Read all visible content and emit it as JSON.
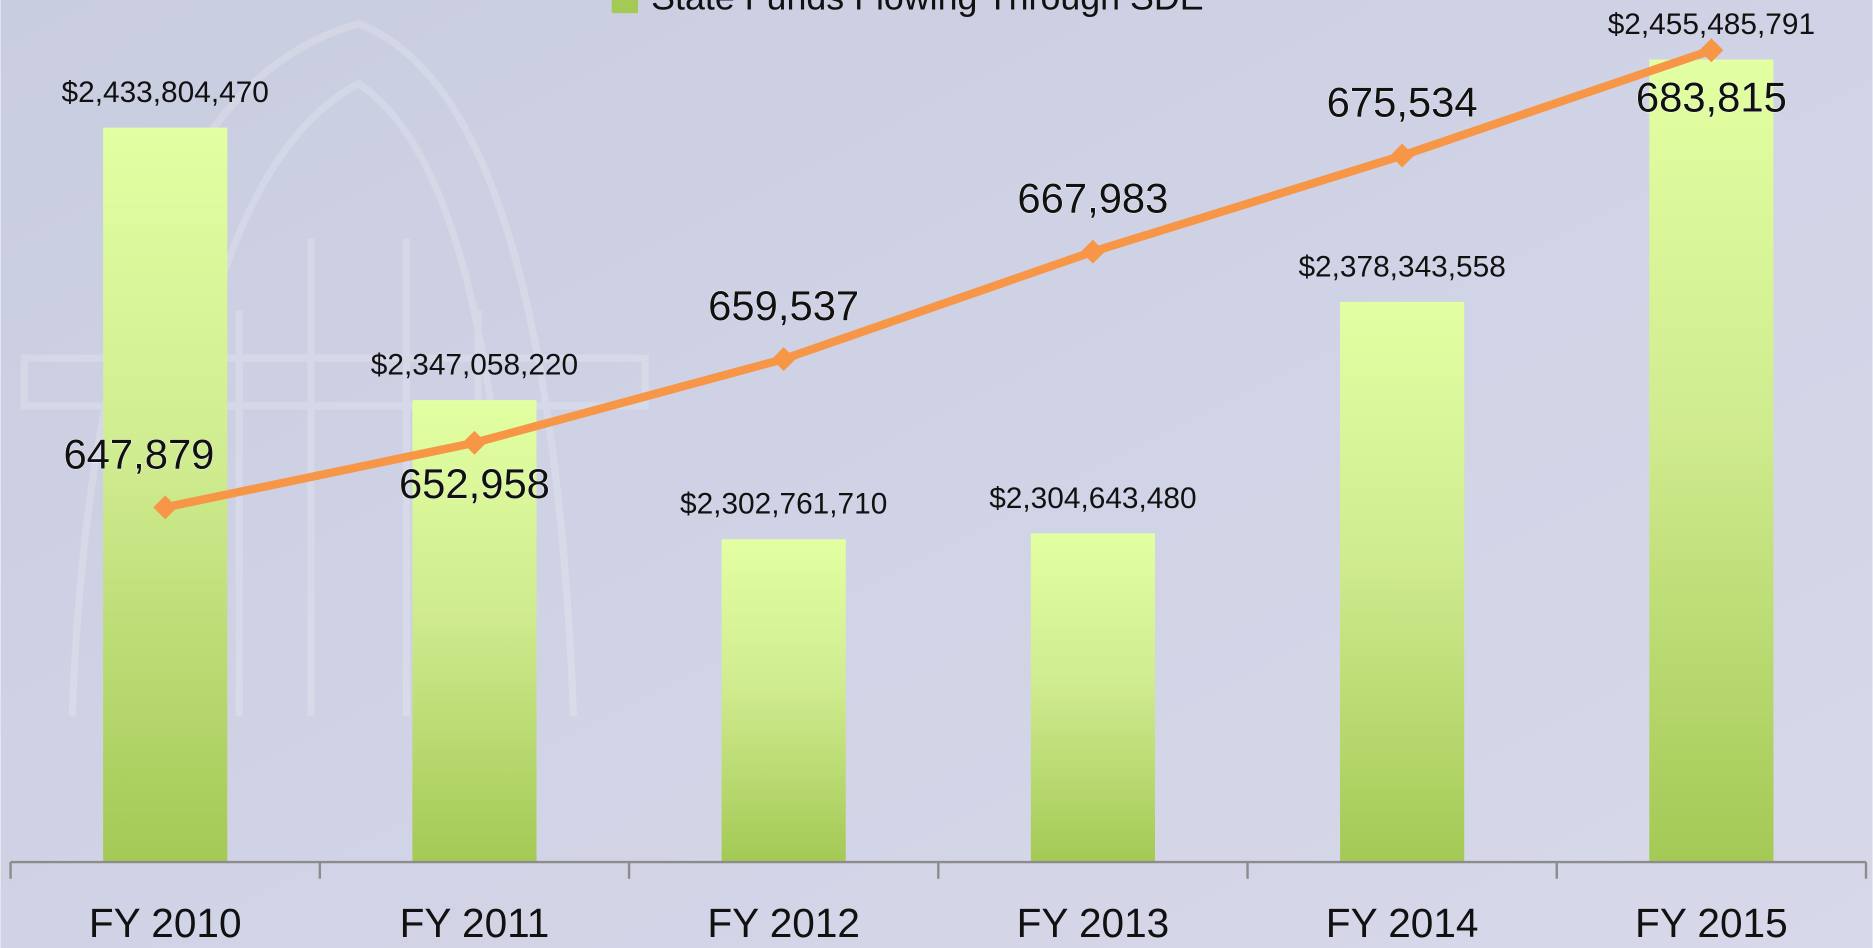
{
  "chart_data": {
    "type": "bar",
    "categories": [
      "FY 2010",
      "FY 2011",
      "FY 2012",
      "FY 2013",
      "FY 2014",
      "FY 2015"
    ],
    "series": [
      {
        "name": "State Funds Flowing Through SDE",
        "color": "#a4c955",
        "values": [
          2433804470,
          2347058220,
          2302761710,
          2304643480,
          2378343558,
          2455485791
        ],
        "value_labels": [
          "$2,433,804,470",
          "$2,347,058,220",
          "$2,302,761,710",
          "$2,304,643,480",
          "$2,378,343,558",
          "$2,455,485,791"
        ]
      },
      {
        "type": "line",
        "axis": "y2",
        "color": "#f79646",
        "values": [
          647879,
          652958,
          659537,
          667983,
          675534,
          683815
        ],
        "value_labels": [
          "647,879",
          "652,958",
          "659,537",
          "667,983",
          "675,534",
          "683,815"
        ]
      }
    ],
    "ylim": [
      2200000000,
      2460000000
    ],
    "y2lim": [
      620000,
      684200
    ]
  }
}
